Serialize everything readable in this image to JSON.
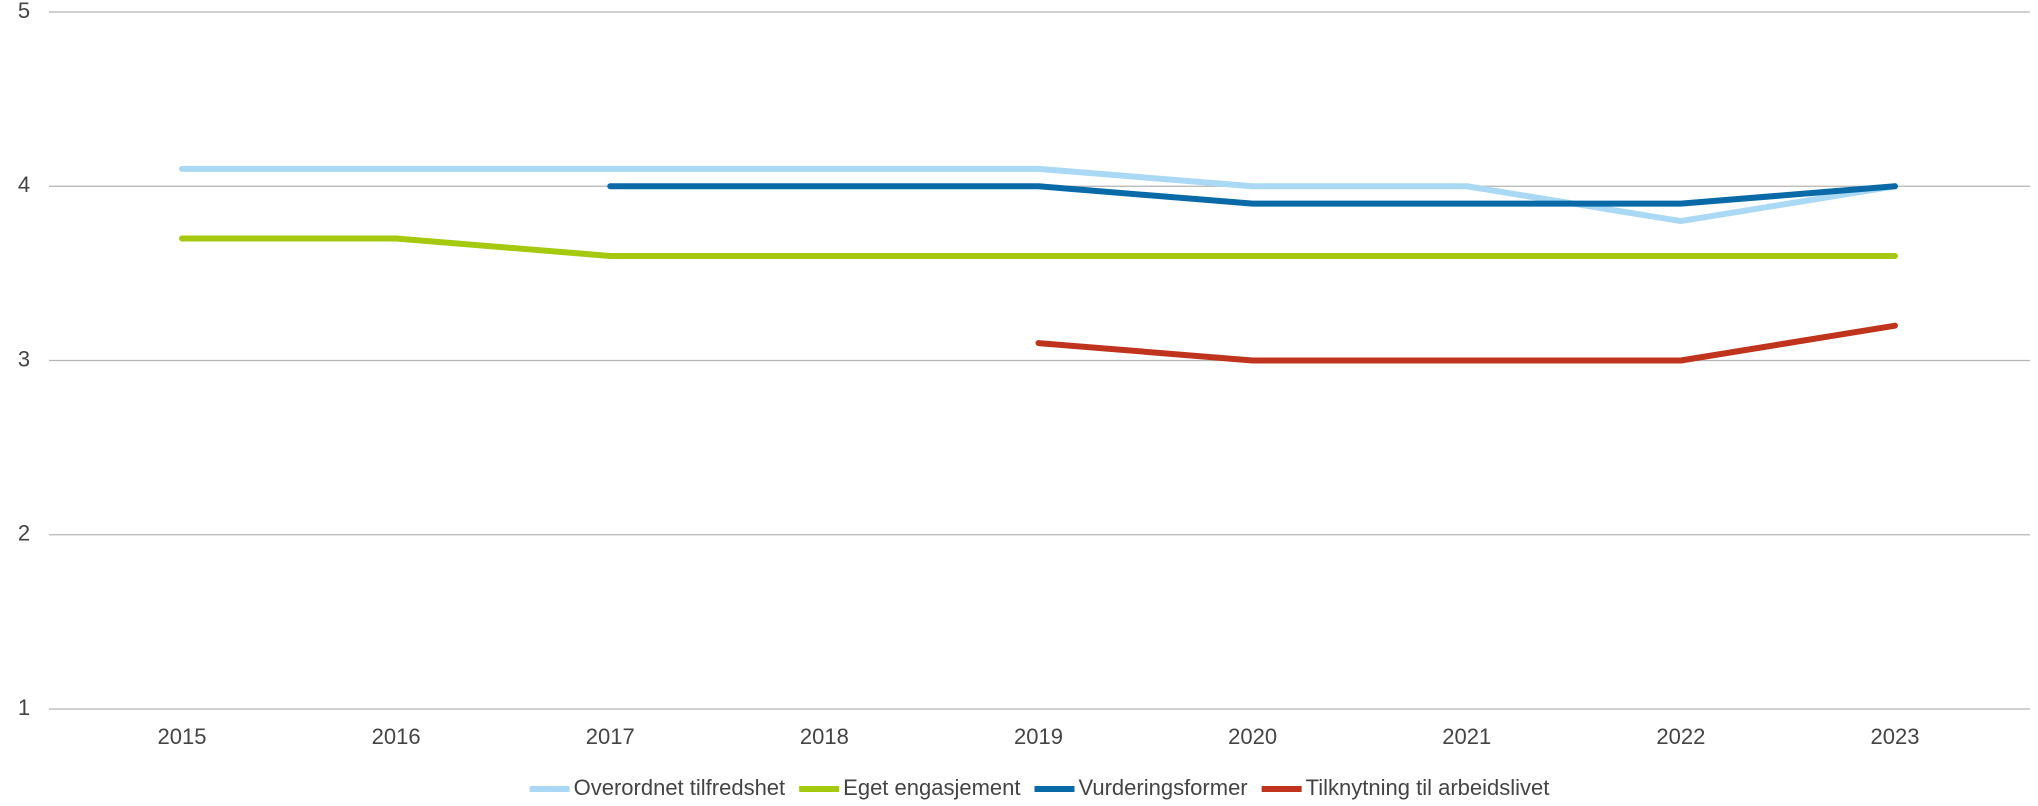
{
  "chart_data": {
    "type": "line",
    "categories": [
      "2015",
      "2016",
      "2017",
      "2018",
      "2019",
      "2020",
      "2021",
      "2022",
      "2023"
    ],
    "series": [
      {
        "name": "Overordnet tilfredshet",
        "color": "#a9d9f5",
        "values": [
          4.1,
          4.1,
          4.1,
          4.1,
          4.1,
          4.0,
          4.0,
          3.8,
          4.0
        ]
      },
      {
        "name": "Eget engasjement",
        "color": "#a4c90f",
        "values": [
          3.7,
          3.7,
          3.6,
          3.6,
          3.6,
          3.6,
          3.6,
          3.6,
          3.6
        ]
      },
      {
        "name": "Vurderingsformer",
        "color": "#0a6aa8",
        "values": [
          null,
          null,
          4.0,
          4.0,
          4.0,
          3.9,
          3.9,
          3.9,
          4.0
        ]
      },
      {
        "name": "Tilknytning til arbeidslivet",
        "color": "#c0341d",
        "values": [
          null,
          null,
          null,
          null,
          3.1,
          3.0,
          3.0,
          3.0,
          3.2
        ]
      }
    ],
    "ylim": [
      1,
      5
    ],
    "yticks": [
      1,
      2,
      3,
      4,
      5
    ],
    "grid": true,
    "legend": "bottom"
  }
}
